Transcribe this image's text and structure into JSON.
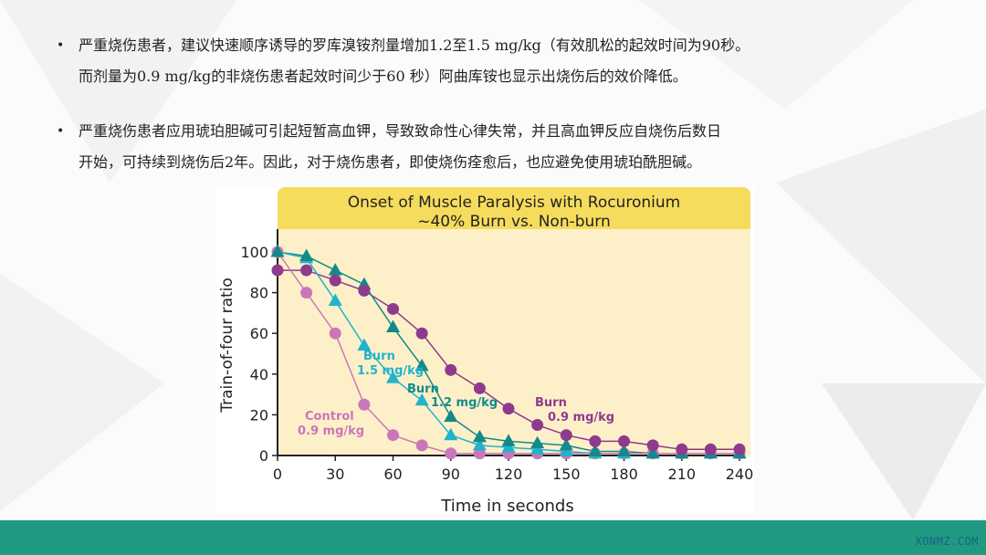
{
  "bullets": [
    {
      "lines": [
        "严重烧伤患者，建议快速顺序诱导的罗库溴铵剂量增加1.2至1.5 mg/kg（有效肌松的起效时间为90秒。",
        "而剂量为0.9 mg/kg的非烧伤患者起效时间少于60 秒）阿曲库铵也显示出烧伤后的效价降低。"
      ]
    },
    {
      "lines": [
        "严重烧伤患者应用琥珀胆碱可引起短暂高血钾，导致致命性心律失常，并且高血钾反应自烧伤后数日",
        "开始，可持续到烧伤后2年。因此，对于烧伤患者，即使烧伤痊愈后，也应避免使用琥珀酰胆碱。"
      ]
    }
  ],
  "footer": {
    "brand": "XONMZ.COM",
    "color": "#1f9a80"
  },
  "chart_data": {
    "type": "line",
    "title": "Onset of Muscle Paralysis with Rocuronium",
    "subtitle": "~40% Burn vs. Non-burn",
    "xlabel": "Time in seconds",
    "ylabel": "Train-of-four ratio",
    "xlim": [
      0,
      240
    ],
    "ylim": [
      0,
      100
    ],
    "xticks": [
      0,
      30,
      60,
      90,
      120,
      150,
      180,
      210,
      240
    ],
    "yticks": [
      0,
      20,
      40,
      60,
      80,
      100
    ],
    "grid": false,
    "x": [
      0,
      15,
      30,
      45,
      60,
      75,
      90,
      105,
      120,
      135,
      150,
      165,
      180,
      195,
      210,
      225,
      240
    ],
    "series": [
      {
        "name": "Burn 0.9 mg/kg",
        "label_lines": [
          "Burn",
          "0.9 mg/kg"
        ],
        "marker": "circle",
        "color": "#8e3a8e",
        "values": [
          91,
          91,
          86,
          81,
          72,
          60,
          42,
          33,
          23,
          15,
          10,
          7,
          7,
          5,
          3,
          3,
          3
        ]
      },
      {
        "name": "Burn 1.2 mg/kg",
        "label_lines": [
          "Burn",
          "1.2 mg/kg"
        ],
        "marker": "triangle",
        "color": "#138a8a",
        "values": [
          100,
          98,
          91,
          84,
          63,
          44,
          19,
          9,
          7,
          6,
          5,
          2,
          2,
          1,
          1,
          1,
          1
        ]
      },
      {
        "name": "Burn 1.5 mg/kg",
        "label_lines": [
          "Burn",
          "1.5 mg/kg"
        ],
        "marker": "triangle",
        "color": "#22b3cc",
        "values": [
          100,
          97,
          76,
          54,
          38,
          27,
          10,
          5,
          4,
          3,
          2,
          1,
          1,
          1,
          1,
          1,
          1
        ]
      },
      {
        "name": "Control 0.9 mg/kg",
        "label_lines": [
          "Control",
          "0.9 mg/kg"
        ],
        "marker": "circle",
        "color": "#c977b8",
        "values": [
          100,
          80,
          60,
          25,
          10,
          5,
          1,
          1,
          1,
          1,
          1,
          1,
          1,
          1,
          1,
          1,
          1
        ]
      }
    ],
    "colors": {
      "header": "#f6dc5c",
      "plot_bg": "#fdf0c9"
    }
  }
}
